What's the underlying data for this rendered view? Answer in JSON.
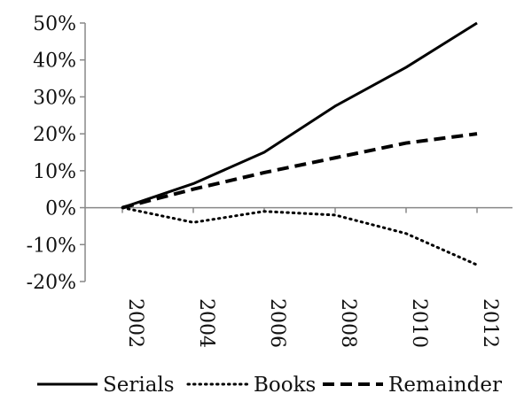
{
  "chart_data": {
    "type": "line",
    "title": "",
    "xlabel": "",
    "ylabel": "",
    "x": [
      2002,
      2004,
      2006,
      2008,
      2010,
      2012
    ],
    "x_tick_labels": [
      "2002",
      "2004",
      "2006",
      "2008",
      "2010",
      "2012"
    ],
    "y_tick_values": [
      -20,
      -10,
      0,
      10,
      20,
      30,
      40,
      50
    ],
    "y_tick_labels": [
      "-20%",
      "-10%",
      "0%",
      "10%",
      "20%",
      "30%",
      "40%",
      "50%"
    ],
    "ylim": [
      -20,
      50
    ],
    "y_unit": "%",
    "grid": false,
    "legend_position": "bottom",
    "series": [
      {
        "name": "Serials",
        "style": "solid",
        "color": "#000000",
        "values": [
          0,
          6.5,
          15,
          27.5,
          38,
          50
        ]
      },
      {
        "name": "Books",
        "style": "dotted",
        "color": "#000000",
        "values": [
          0,
          -4,
          -1,
          -2,
          -7,
          -15.5
        ]
      },
      {
        "name": "Remainder",
        "style": "dashed",
        "color": "#000000",
        "values": [
          0,
          5,
          9.5,
          13.5,
          17.5,
          20
        ]
      }
    ]
  }
}
